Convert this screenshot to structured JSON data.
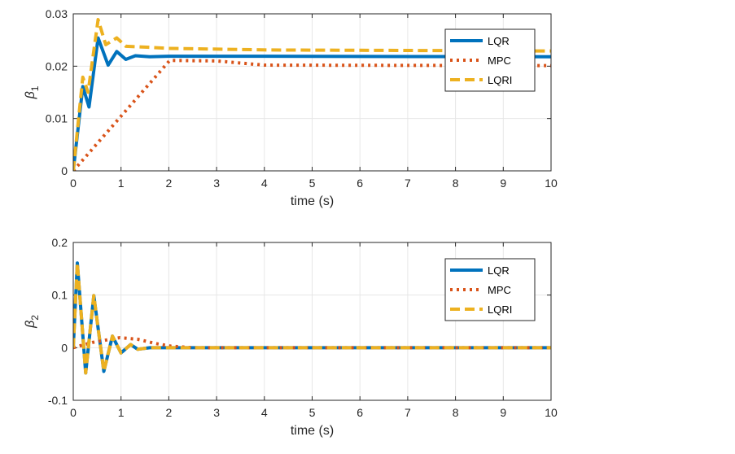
{
  "chart_data": [
    {
      "type": "line",
      "xlabel": "time (s)",
      "ylabel": "β",
      "ylabel_sub": "1",
      "xlim": [
        0,
        10
      ],
      "ylim": [
        0,
        0.03
      ],
      "xticks": [
        "0",
        "1",
        "2",
        "3",
        "4",
        "5",
        "6",
        "7",
        "8",
        "9",
        "10"
      ],
      "yticks": [
        "0",
        "0.01",
        "0.02",
        "0.03"
      ],
      "ytick_values": [
        0,
        0.01,
        0.02,
        0.03
      ],
      "grid": true,
      "legend": "top-right",
      "series": [
        {
          "name": "LQR",
          "color": "#0072BD",
          "style": "solid",
          "x": [
            0,
            0.2,
            0.33,
            0.52,
            0.73,
            0.91,
            1.1,
            1.3,
            1.6,
            2,
            4,
            10
          ],
          "y": [
            0,
            0.0161,
            0.0122,
            0.0254,
            0.0202,
            0.0228,
            0.0213,
            0.022,
            0.0218,
            0.0219,
            0.0219,
            0.0218
          ]
        },
        {
          "name": "MPC",
          "color": "#D95319",
          "style": "dotted",
          "x": [
            0,
            2.02,
            3,
            4,
            10
          ],
          "y": [
            0,
            0.0211,
            0.021,
            0.0202,
            0.0201
          ]
        },
        {
          "name": "LQRI",
          "color": "#EDB120",
          "style": "dashed",
          "x": [
            0,
            0.2,
            0.31,
            0.52,
            0.68,
            0.91,
            1.1,
            1.6,
            2,
            4.1,
            10
          ],
          "y": [
            0,
            0.0179,
            0.015,
            0.0289,
            0.0241,
            0.0254,
            0.0238,
            0.0236,
            0.0234,
            0.0231,
            0.0229
          ]
        }
      ]
    },
    {
      "type": "line",
      "xlabel": "time (s)",
      "ylabel": "β",
      "ylabel_sub": "2",
      "xlim": [
        0,
        10
      ],
      "ylim": [
        -0.1,
        0.2
      ],
      "xticks": [
        "0",
        "1",
        "2",
        "3",
        "4",
        "5",
        "6",
        "7",
        "8",
        "9",
        "10"
      ],
      "yticks": [
        "-0.1",
        "0",
        "0.1",
        "0.2"
      ],
      "ytick_values": [
        -0.1,
        0,
        0.1,
        0.2
      ],
      "grid": true,
      "legend": "top-right",
      "series": [
        {
          "name": "LQR",
          "color": "#0072BD",
          "style": "solid",
          "x": [
            0,
            0.085,
            0.26,
            0.43,
            0.64,
            0.82,
            1.0,
            1.2,
            1.35,
            1.6,
            10
          ],
          "y": [
            0,
            0.161,
            -0.048,
            0.099,
            -0.045,
            0.022,
            -0.01,
            0.006,
            -0.003,
            0,
            0
          ]
        },
        {
          "name": "MPC",
          "color": "#D95319",
          "style": "dotted",
          "x": [
            0,
            0.4,
            0.97,
            1.35,
            1.72,
            2.04,
            2.5,
            10
          ],
          "y": [
            0,
            0.01,
            0.019,
            0.016,
            0.008,
            0.003,
            0,
            0
          ]
        },
        {
          "name": "LQRI",
          "color": "#EDB120",
          "style": "dashed",
          "x": [
            0,
            0.085,
            0.26,
            0.43,
            0.64,
            0.82,
            1.0,
            1.2,
            1.35,
            1.6,
            10
          ],
          "y": [
            0,
            0.161,
            -0.048,
            0.099,
            -0.045,
            0.022,
            -0.01,
            0.006,
            -0.003,
            0,
            0
          ]
        }
      ]
    }
  ]
}
